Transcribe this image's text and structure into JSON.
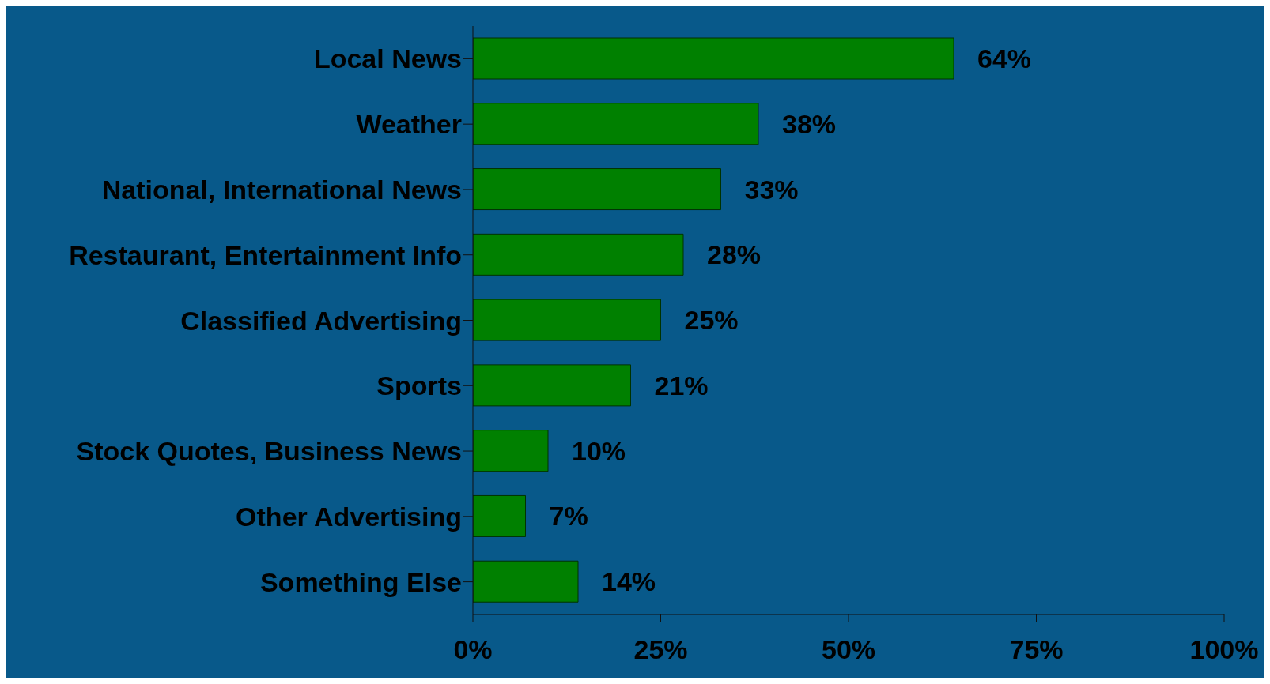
{
  "chart_data": {
    "type": "bar",
    "orientation": "horizontal",
    "categories": [
      "Local News",
      "Weather",
      "National, International News",
      "Restaurant, Entertainment Info",
      "Classified Advertising",
      "Sports",
      "Stock Quotes, Business News",
      "Other Advertising",
      "Something Else"
    ],
    "values": [
      64,
      38,
      33,
      28,
      25,
      21,
      10,
      7,
      14
    ],
    "value_labels": [
      "64%",
      "38%",
      "33%",
      "28%",
      "25%",
      "21%",
      "10%",
      "7%",
      "14%"
    ],
    "color": "#008000",
    "xlim": [
      0,
      100
    ],
    "xticks": [
      {
        "value": 0,
        "label": "0%"
      },
      {
        "value": 25,
        "label": "25%"
      },
      {
        "value": 50,
        "label": "50%"
      },
      {
        "value": 75,
        "label": "75%"
      },
      {
        "value": 100,
        "label": "100%"
      }
    ],
    "grid": false,
    "legend": false
  }
}
